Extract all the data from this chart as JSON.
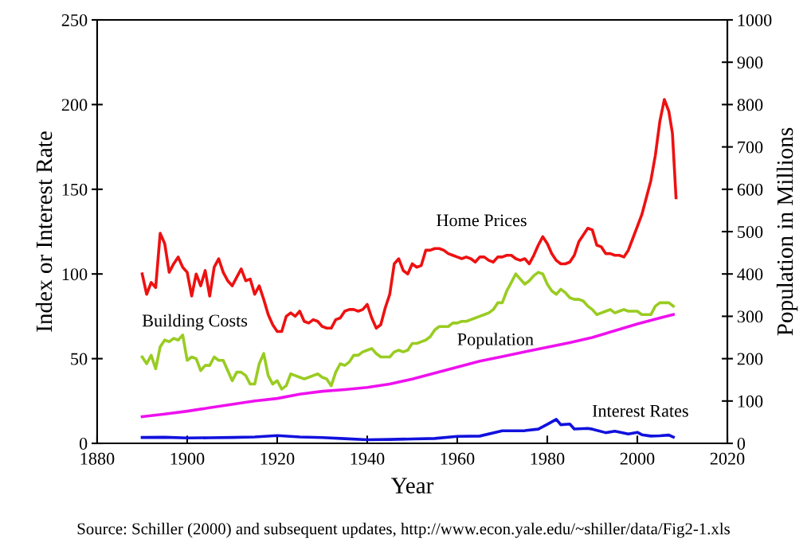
{
  "chart_data": {
    "type": "line",
    "xlabel": "Year",
    "ylabel": "Index or Interest Rate",
    "y2label": "Population in Millions",
    "xlim": [
      1880,
      2020
    ],
    "xticks": [
      1880,
      1900,
      1920,
      1940,
      1960,
      1980,
      2000,
      2020
    ],
    "ylim": [
      0,
      250
    ],
    "yticks": [
      0,
      50,
      100,
      150,
      200,
      250
    ],
    "y2lim": [
      0,
      1000
    ],
    "y2ticks": [
      0,
      100,
      200,
      300,
      400,
      500,
      600,
      700,
      800,
      900,
      1000
    ],
    "grid": false,
    "legend": false,
    "line_style": "solid",
    "marker": "none",
    "series": [
      {
        "name": "Home Prices",
        "color": "#ee1111",
        "x": [
          1890,
          1891,
          1892,
          1893,
          1894,
          1895,
          1896,
          1897,
          1898,
          1899,
          1900,
          1901,
          1902,
          1903,
          1904,
          1905,
          1906,
          1907,
          1908,
          1909,
          1910,
          1911,
          1912,
          1913,
          1914,
          1915,
          1916,
          1917,
          1918,
          1919,
          1920,
          1921,
          1922,
          1923,
          1924,
          1925,
          1926,
          1927,
          1928,
          1929,
          1930,
          1931,
          1932,
          1933,
          1934,
          1935,
          1936,
          1937,
          1938,
          1939,
          1940,
          1941,
          1942,
          1943,
          1944,
          1945,
          1946,
          1947,
          1948,
          1949,
          1950,
          1951,
          1952,
          1953,
          1954,
          1955,
          1956,
          1957,
          1958,
          1959,
          1960,
          1961,
          1962,
          1963,
          1964,
          1965,
          1966,
          1967,
          1968,
          1969,
          1970,
          1971,
          1972,
          1973,
          1974,
          1975,
          1976,
          1977,
          1978,
          1979,
          1980,
          1981,
          1982,
          1983,
          1984,
          1985,
          1986,
          1987,
          1988,
          1989,
          1990,
          1991,
          1992,
          1993,
          1994,
          1995,
          1996,
          1997,
          1998,
          1999,
          2000,
          2001,
          2002,
          2003,
          2004,
          2005,
          2006,
          2007,
          2007.8,
          2008.6
        ],
        "values": [
          100,
          88,
          95,
          92,
          124,
          118,
          101,
          106,
          110,
          104,
          101,
          87,
          100,
          93,
          102,
          87,
          104,
          109,
          101,
          96,
          93,
          98,
          103,
          96,
          97,
          88,
          93,
          85,
          76,
          70,
          66,
          66,
          75,
          77,
          75,
          78,
          72,
          71,
          73,
          72,
          69,
          68,
          68,
          73,
          74,
          78,
          79,
          79,
          78,
          79,
          82,
          74,
          68,
          70,
          80,
          88,
          106,
          109,
          102,
          100,
          106,
          104,
          105,
          114,
          114,
          115,
          115,
          114,
          112,
          111,
          110,
          109,
          110,
          109,
          107,
          110,
          110,
          108,
          107,
          110,
          110,
          111,
          111,
          109,
          108,
          109,
          106,
          111,
          117,
          122,
          118,
          112,
          108,
          106,
          106,
          107,
          111,
          119,
          123,
          127,
          126,
          117,
          116,
          112,
          112,
          111,
          111,
          110,
          114,
          121,
          128,
          135,
          145,
          155,
          170,
          190,
          203,
          196,
          183,
          145
        ]
      },
      {
        "name": "Building Costs",
        "color": "#99cc22",
        "x": [
          1890,
          1891,
          1892,
          1893,
          1894,
          1895,
          1896,
          1897,
          1898,
          1899,
          1900,
          1901,
          1902,
          1903,
          1904,
          1905,
          1906,
          1907,
          1908,
          1909,
          1910,
          1911,
          1912,
          1913,
          1914,
          1915,
          1916,
          1917,
          1918,
          1919,
          1920,
          1921,
          1922,
          1923,
          1924,
          1925,
          1926,
          1927,
          1928,
          1929,
          1930,
          1931,
          1932,
          1933,
          1934,
          1935,
          1936,
          1937,
          1938,
          1939,
          1940,
          1941,
          1942,
          1943,
          1944,
          1945,
          1946,
          1947,
          1948,
          1949,
          1950,
          1951,
          1952,
          1953,
          1954,
          1955,
          1956,
          1957,
          1958,
          1959,
          1960,
          1961,
          1962,
          1963,
          1964,
          1965,
          1966,
          1967,
          1968,
          1969,
          1970,
          1971,
          1972,
          1973,
          1974,
          1975,
          1976,
          1977,
          1978,
          1979,
          1980,
          1981,
          1982,
          1983,
          1984,
          1985,
          1986,
          1987,
          1988,
          1989,
          1990,
          1991,
          1992,
          1993,
          1994,
          1995,
          1996,
          1997,
          1998,
          1999,
          2000,
          2001,
          2002,
          2003,
          2004,
          2005,
          2006,
          2007,
          2008
        ],
        "values": [
          51,
          47,
          52,
          44,
          57,
          61,
          60,
          62,
          61,
          64,
          49,
          51,
          50,
          43,
          46,
          46,
          51,
          49,
          49,
          43,
          37,
          42,
          42,
          40,
          35,
          35,
          47,
          53,
          40,
          35,
          37,
          32,
          34,
          41,
          40,
          39,
          38,
          39,
          40,
          41,
          39,
          38,
          34,
          42,
          47,
          46,
          48,
          52,
          52,
          54,
          55,
          56,
          53,
          51,
          51,
          51,
          54,
          55,
          54,
          55,
          59,
          59,
          60,
          61,
          63,
          67,
          69,
          69,
          69,
          71,
          71,
          72,
          72,
          73,
          74,
          75,
          76,
          77,
          79,
          83,
          83,
          90,
          95,
          100,
          97,
          94,
          96,
          99,
          101,
          100,
          94,
          90,
          88,
          91,
          89,
          86,
          85,
          85,
          84,
          81,
          79,
          76,
          77,
          78,
          79,
          77,
          78,
          79,
          78,
          78,
          78,
          76,
          76,
          76,
          81,
          83,
          83,
          83,
          81
        ]
      },
      {
        "name": "Population",
        "color": "#ee11ee",
        "axis": "y2",
        "x": [
          1890,
          1895,
          1900,
          1905,
          1910,
          1915,
          1920,
          1925,
          1930,
          1935,
          1940,
          1945,
          1950,
          1955,
          1960,
          1965,
          1970,
          1975,
          1980,
          1985,
          1990,
          1995,
          2000,
          2005,
          2008
        ],
        "values": [
          63,
          69,
          76,
          84,
          92,
          100,
          106,
          116,
          123,
          127,
          132,
          140,
          152,
          166,
          180,
          194,
          205,
          216,
          227,
          238,
          250,
          266,
          282,
          296,
          304
        ]
      },
      {
        "name": "Interest Rates",
        "color": "#1111dd",
        "x": [
          1890,
          1895,
          1900,
          1905,
          1910,
          1915,
          1920,
          1925,
          1930,
          1935,
          1940,
          1945,
          1950,
          1955,
          1960,
          1965,
          1970,
          1975,
          1978,
          1980,
          1982,
          1983,
          1985,
          1986,
          1989,
          1990,
          1993,
          1995,
          1998,
          2000,
          2001,
          2003,
          2005,
          2007,
          2008
        ],
        "values": [
          3.5,
          3.6,
          3.2,
          3.3,
          3.5,
          3.8,
          4.6,
          3.8,
          3.4,
          2.8,
          2.1,
          2.3,
          2.6,
          2.9,
          4.1,
          4.3,
          7.4,
          7.5,
          8.4,
          11.2,
          14.2,
          11.0,
          11.4,
          8.5,
          8.8,
          8.4,
          6.3,
          7.2,
          5.5,
          6.5,
          5.1,
          4.3,
          4.5,
          4.9,
          3.7
        ]
      }
    ],
    "annotations": [
      "Source: Schiller (2000) and subsequent updates, http://www.econ.yale.edu/~shiller/data/Fig2-1.xls"
    ]
  }
}
